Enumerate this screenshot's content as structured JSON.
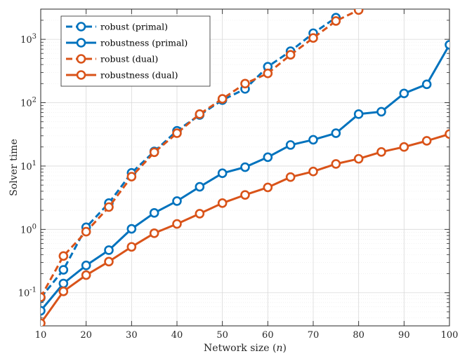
{
  "chart_data": {
    "type": "line",
    "xlabel": "Network size (n)",
    "ylabel": "Solver time",
    "yscale": "log",
    "xlim": [
      10,
      100
    ],
    "ylim": [
      0.03,
      3000
    ],
    "x_ticks": [
      10,
      20,
      30,
      40,
      50,
      60,
      70,
      80,
      90,
      100
    ],
    "y_ticks": [
      {
        "value": 0.1,
        "base": "10",
        "exp": "-1"
      },
      {
        "value": 1,
        "base": "10",
        "exp": "0"
      },
      {
        "value": 10,
        "base": "10",
        "exp": "1"
      },
      {
        "value": 100,
        "base": "10",
        "exp": "2"
      },
      {
        "value": 1000,
        "base": "10",
        "exp": "3"
      }
    ],
    "grid": true,
    "legend_position": "top-left",
    "series": [
      {
        "name": "robust (primal)",
        "color": "#0072BD",
        "dashed": true,
        "x": [
          10,
          15,
          20,
          25,
          30,
          35,
          40,
          45,
          50,
          55,
          60,
          65,
          70,
          75
        ],
        "y": [
          0.083,
          0.23,
          1.08,
          2.6,
          7.8,
          17,
          36,
          64,
          110,
          165,
          370,
          650,
          1250,
          2200
        ]
      },
      {
        "name": "robustness (primal)",
        "color": "#0072BD",
        "dashed": false,
        "x": [
          10,
          15,
          20,
          25,
          30,
          35,
          40,
          45,
          50,
          55,
          60,
          65,
          70,
          75,
          80,
          85,
          90,
          95,
          100
        ],
        "y": [
          0.052,
          0.14,
          0.27,
          0.47,
          1.02,
          1.82,
          2.8,
          4.7,
          7.7,
          9.6,
          13.8,
          21.5,
          26,
          33,
          66,
          72,
          140,
          195,
          820
        ]
      },
      {
        "name": "robust (dual)",
        "color": "#D95319",
        "dashed": true,
        "x": [
          10,
          15,
          20,
          25,
          30,
          35,
          40,
          45,
          50,
          55,
          60,
          65,
          70,
          75,
          80
        ],
        "y": [
          0.085,
          0.38,
          0.92,
          2.25,
          6.8,
          16.5,
          33,
          66,
          115,
          200,
          290,
          570,
          1050,
          1950,
          2900
        ]
      },
      {
        "name": "robustness (dual)",
        "color": "#D95319",
        "dashed": false,
        "x": [
          10,
          15,
          20,
          25,
          30,
          35,
          40,
          45,
          50,
          55,
          60,
          65,
          70,
          75,
          80,
          85,
          90,
          95,
          100
        ],
        "y": [
          0.033,
          0.105,
          0.19,
          0.31,
          0.53,
          0.87,
          1.22,
          1.77,
          2.6,
          3.5,
          4.6,
          6.7,
          8.2,
          10.8,
          13,
          16.7,
          20,
          25,
          32
        ]
      }
    ]
  }
}
